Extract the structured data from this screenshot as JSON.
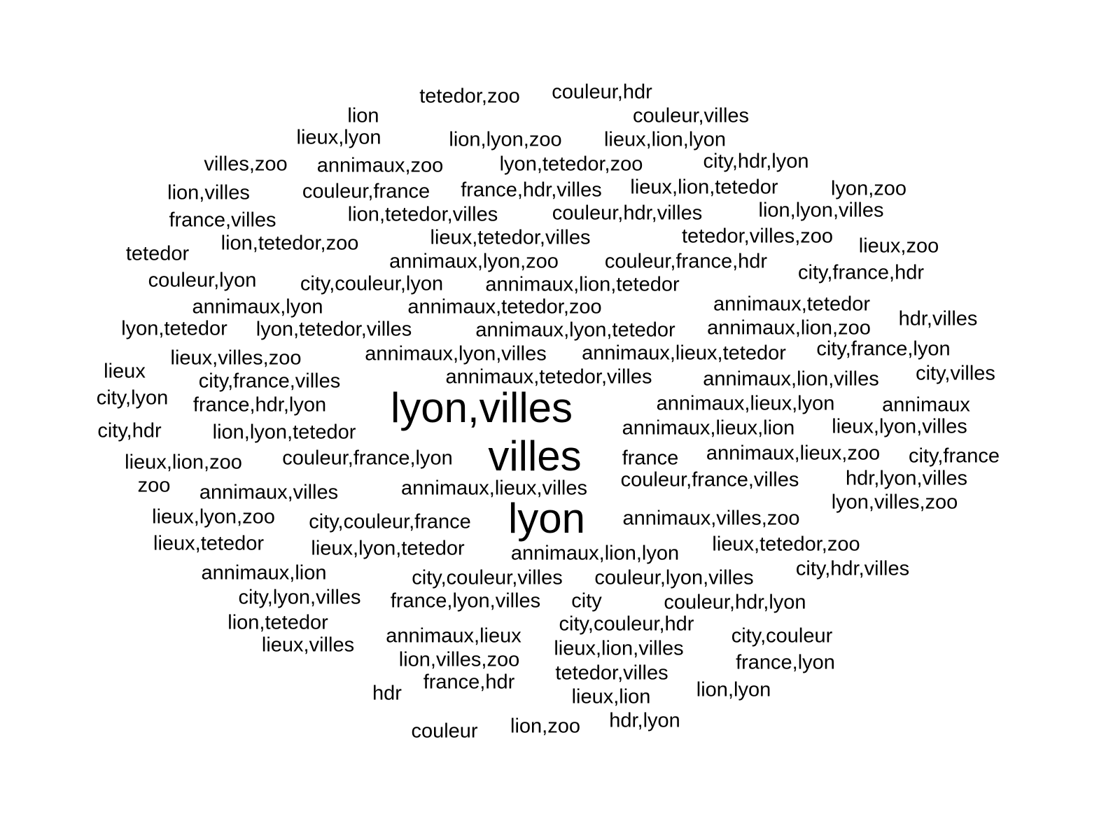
{
  "text_color": "#000000",
  "background_color": "#ffffff",
  "words": [
    {
      "text": "lyon,villes",
      "weight": 3.0
    },
    {
      "text": "villes",
      "weight": 3.0
    },
    {
      "text": "lyon",
      "weight": 3.0
    },
    {
      "text": "tetedor,zoo",
      "weight": 1
    },
    {
      "text": "couleur,hdr",
      "weight": 1
    },
    {
      "text": "lion",
      "weight": 1
    },
    {
      "text": "couleur,villes",
      "weight": 1
    },
    {
      "text": "lieux,lyon",
      "weight": 1
    },
    {
      "text": "lion,lyon,zoo",
      "weight": 1
    },
    {
      "text": "lieux,lion,lyon",
      "weight": 1
    },
    {
      "text": "villes,zoo",
      "weight": 1
    },
    {
      "text": "annimaux,zoo",
      "weight": 1
    },
    {
      "text": "lyon,tetedor,zoo",
      "weight": 1
    },
    {
      "text": "city,hdr,lyon",
      "weight": 1
    },
    {
      "text": "lion,villes",
      "weight": 1
    },
    {
      "text": "couleur,france",
      "weight": 1
    },
    {
      "text": "france,hdr,villes",
      "weight": 1
    },
    {
      "text": "lieux,lion,tetedor",
      "weight": 1
    },
    {
      "text": "lyon,zoo",
      "weight": 1
    },
    {
      "text": "france,villes",
      "weight": 1
    },
    {
      "text": "lion,tetedor,villes",
      "weight": 1
    },
    {
      "text": "couleur,hdr,villes",
      "weight": 1
    },
    {
      "text": "lion,lyon,villes",
      "weight": 1
    },
    {
      "text": "tetedor",
      "weight": 1
    },
    {
      "text": "lion,tetedor,zoo",
      "weight": 1
    },
    {
      "text": "lieux,tetedor,villes",
      "weight": 1
    },
    {
      "text": "tetedor,villes,zoo",
      "weight": 1
    },
    {
      "text": "lieux,zoo",
      "weight": 1
    },
    {
      "text": "annimaux,lyon,zoo",
      "weight": 1
    },
    {
      "text": "couleur,france,hdr",
      "weight": 1
    },
    {
      "text": "couleur,lyon",
      "weight": 1
    },
    {
      "text": "city,couleur,lyon",
      "weight": 1
    },
    {
      "text": "annimaux,lion,tetedor",
      "weight": 1
    },
    {
      "text": "city,france,hdr",
      "weight": 1
    },
    {
      "text": "annimaux,lyon",
      "weight": 1
    },
    {
      "text": "annimaux,tetedor,zoo",
      "weight": 1
    },
    {
      "text": "annimaux,tetedor",
      "weight": 1
    },
    {
      "text": "lyon,tetedor",
      "weight": 1
    },
    {
      "text": "lyon,tetedor,villes",
      "weight": 1
    },
    {
      "text": "annimaux,lyon,tetedor",
      "weight": 1
    },
    {
      "text": "annimaux,lion,zoo",
      "weight": 1
    },
    {
      "text": "hdr,villes",
      "weight": 1
    },
    {
      "text": "lieux,villes,zoo",
      "weight": 1
    },
    {
      "text": "annimaux,lyon,villes",
      "weight": 1
    },
    {
      "text": "annimaux,lieux,tetedor",
      "weight": 1
    },
    {
      "text": "city,france,lyon",
      "weight": 1
    },
    {
      "text": "lieux",
      "weight": 1
    },
    {
      "text": "annimaux,tetedor,villes",
      "weight": 1
    },
    {
      "text": "annimaux,lion,villes",
      "weight": 1
    },
    {
      "text": "city,villes",
      "weight": 1
    },
    {
      "text": "city,france,villes",
      "weight": 1
    },
    {
      "text": "city,lyon",
      "weight": 1
    },
    {
      "text": "annimaux,lieux,lyon",
      "weight": 1
    },
    {
      "text": "annimaux",
      "weight": 1
    },
    {
      "text": "france,hdr,lyon",
      "weight": 1
    },
    {
      "text": "annimaux,lieux,lion",
      "weight": 1
    },
    {
      "text": "lieux,lyon,villes",
      "weight": 1
    },
    {
      "text": "city,hdr",
      "weight": 1
    },
    {
      "text": "lion,lyon,tetedor",
      "weight": 1
    },
    {
      "text": "france",
      "weight": 1
    },
    {
      "text": "annimaux,lieux,zoo",
      "weight": 1
    },
    {
      "text": "city,france",
      "weight": 1
    },
    {
      "text": "lieux,lion,zoo",
      "weight": 1
    },
    {
      "text": "couleur,france,lyon",
      "weight": 1
    },
    {
      "text": "couleur,france,villes",
      "weight": 1
    },
    {
      "text": "hdr,lyon,villes",
      "weight": 1
    },
    {
      "text": "zoo",
      "weight": 1
    },
    {
      "text": "annimaux,villes",
      "weight": 1
    },
    {
      "text": "annimaux,lieux,villes",
      "weight": 1
    },
    {
      "text": "lyon,villes,zoo",
      "weight": 1
    },
    {
      "text": "lieux,lyon,zoo",
      "weight": 1
    },
    {
      "text": "city,couleur,france",
      "weight": 1
    },
    {
      "text": "annimaux,villes,zoo",
      "weight": 1
    },
    {
      "text": "lieux,tetedor",
      "weight": 1
    },
    {
      "text": "lieux,lyon,tetedor",
      "weight": 1
    },
    {
      "text": "annimaux,lion,lyon",
      "weight": 1
    },
    {
      "text": "lieux,tetedor,zoo",
      "weight": 1
    },
    {
      "text": "annimaux,lion",
      "weight": 1
    },
    {
      "text": "city,couleur,villes",
      "weight": 1
    },
    {
      "text": "couleur,lyon,villes",
      "weight": 1
    },
    {
      "text": "city,hdr,villes",
      "weight": 1
    },
    {
      "text": "city,lyon,villes",
      "weight": 1
    },
    {
      "text": "france,lyon,villes",
      "weight": 1
    },
    {
      "text": "city",
      "weight": 1
    },
    {
      "text": "couleur,hdr,lyon",
      "weight": 1
    },
    {
      "text": "lion,tetedor",
      "weight": 1
    },
    {
      "text": "city,couleur,hdr",
      "weight": 1
    },
    {
      "text": "annimaux,lieux",
      "weight": 1
    },
    {
      "text": "city,couleur",
      "weight": 1
    },
    {
      "text": "lieux,villes",
      "weight": 1
    },
    {
      "text": "lieux,lion,villes",
      "weight": 1
    },
    {
      "text": "lion,villes,zoo",
      "weight": 1
    },
    {
      "text": "france,lyon",
      "weight": 1
    },
    {
      "text": "tetedor,villes",
      "weight": 1
    },
    {
      "text": "france,hdr",
      "weight": 1
    },
    {
      "text": "hdr",
      "weight": 1
    },
    {
      "text": "lion,lyon",
      "weight": 1
    },
    {
      "text": "lieux,lion",
      "weight": 1
    },
    {
      "text": "couleur",
      "weight": 1
    },
    {
      "text": "lion,zoo",
      "weight": 1
    },
    {
      "text": "hdr,lyon",
      "weight": 1
    }
  ]
}
